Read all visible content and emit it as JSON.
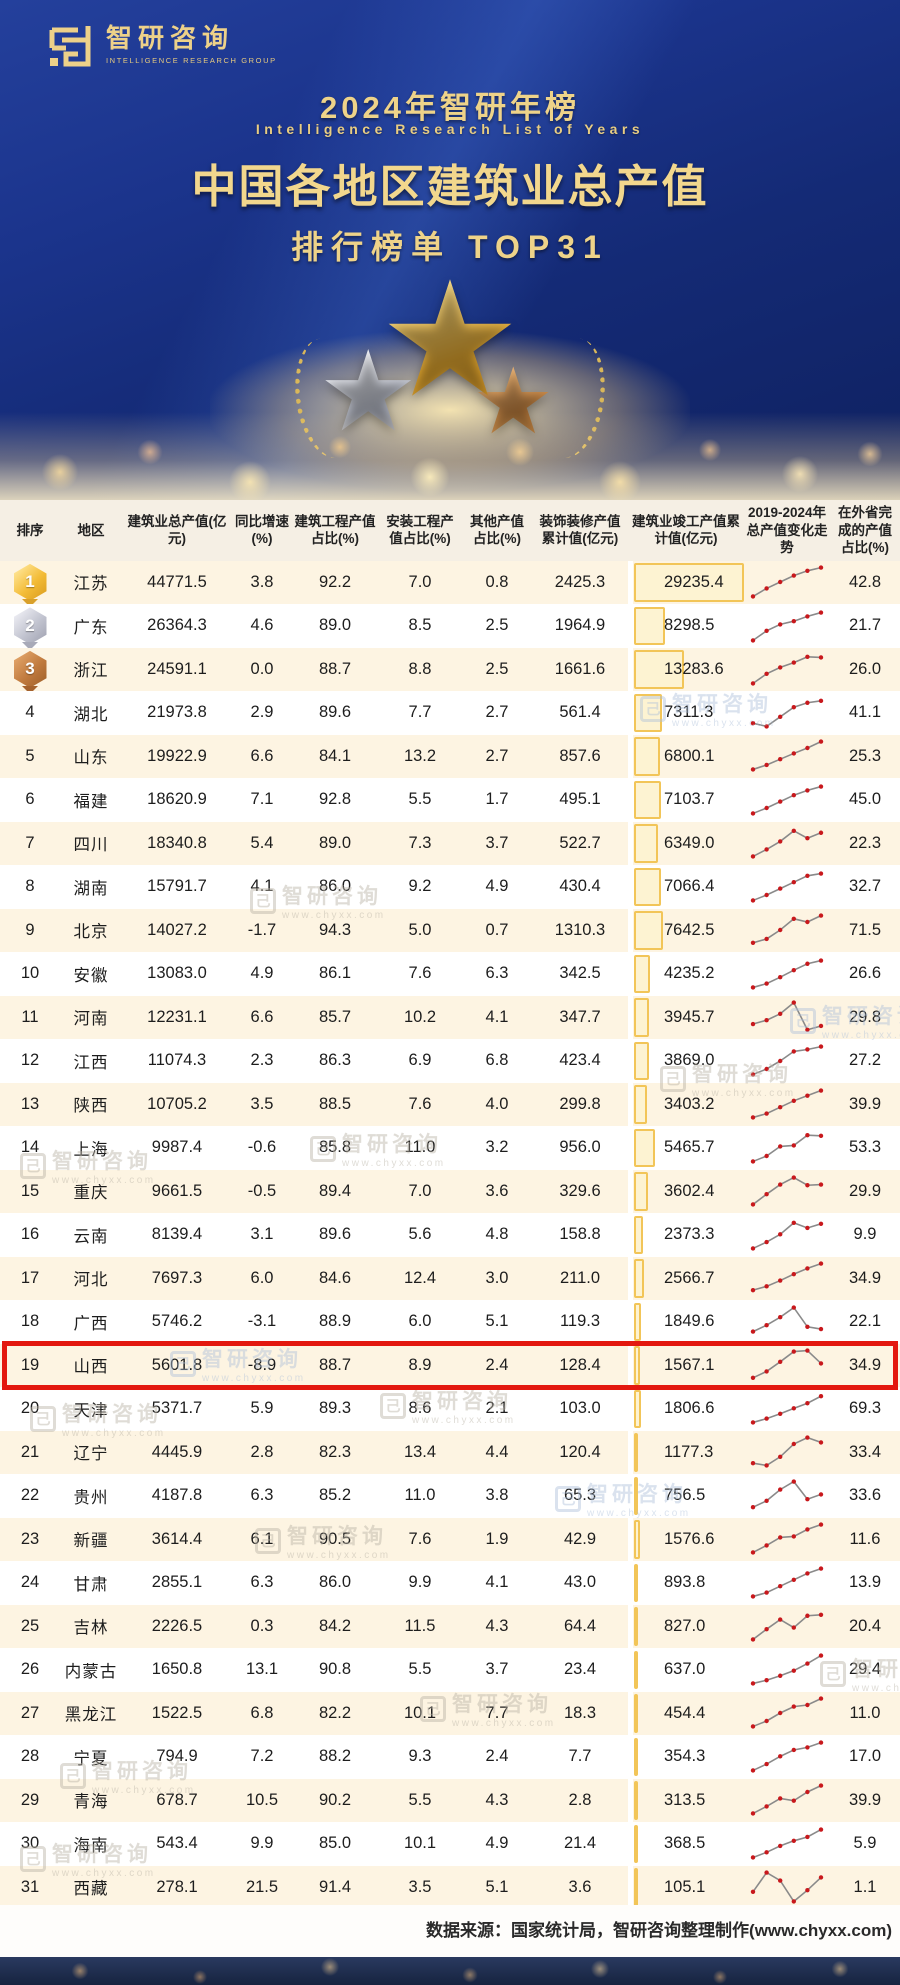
{
  "logo": {
    "cn": "智研咨询",
    "en": "INTELLIGENCE RESEARCH GROUP",
    "mark": "logo-maze-glyph"
  },
  "hero": {
    "year_line": "2024年智研年榜",
    "en_line": "Intelligence Research List of Years",
    "title": "中国各地区建筑业总产值",
    "subtitle": "排行榜单  TOP31",
    "trophy_icons": [
      "gold-star-icon",
      "silver-star-icon",
      "bronze-star-icon",
      "laurel-wreath-icon"
    ]
  },
  "watermark": {
    "cn": "智研咨询",
    "url": "www.chyxx.com",
    "box": "己"
  },
  "footer": {
    "source": "数据来源：国家统计局，智研咨询整理制作(www.chyxx.com)"
  },
  "colors": {
    "hero_blue": "#1b348c",
    "gold_text": "#eed389",
    "row_cream": "#fdf4e2",
    "row_white": "#ffffff",
    "bar_fill": "#fdf3d2",
    "bar_border": "#f2c558",
    "highlight_red": "#e3180f",
    "spark_line": "#8a8a8a",
    "spark_dot": "#c8181c",
    "bottom_band": "#16233f"
  },
  "chart_data": {
    "type": "table",
    "title": "中国各地区建筑业总产值排行榜单 TOP31",
    "columns": [
      "排序",
      "地区",
      "建筑业总产值(亿元)",
      "同比增速(%)",
      "建筑工程产值占比(%)",
      "安装工程产值占比(%)",
      "其他产值占比(%)",
      "装饰装修产值累计值(亿元)",
      "建筑业竣工产值累计值(亿元)",
      "2019-2024年总产值变化走势",
      "在外省完成的产值占比(%)"
    ],
    "trend_years": [
      2019,
      2020,
      2021,
      2022,
      2023,
      2024
    ],
    "bar_max": 29235.4,
    "highlight_rank": 19,
    "rows": [
      {
        "rank": "1",
        "region": "江苏",
        "total": "44771.5",
        "yoy": "3.8",
        "construction_pct": "92.2",
        "install_pct": "7.0",
        "other_pct": "0.8",
        "decoration": "2425.3",
        "completion": "29235.4",
        "trend": [
          5,
          30,
          50,
          70,
          85,
          95
        ],
        "out_province_pct": "42.8"
      },
      {
        "rank": "2",
        "region": "广东",
        "total": "26364.3",
        "yoy": "4.6",
        "construction_pct": "89.0",
        "install_pct": "8.5",
        "other_pct": "2.5",
        "decoration": "1964.9",
        "completion": "8298.5",
        "trend": [
          5,
          35,
          55,
          65,
          80,
          92
        ],
        "out_province_pct": "21.7"
      },
      {
        "rank": "3",
        "region": "浙江",
        "total": "24591.1",
        "yoy": "0.0",
        "construction_pct": "88.7",
        "install_pct": "8.8",
        "other_pct": "2.5",
        "decoration": "1661.6",
        "completion": "13283.6",
        "trend": [
          5,
          35,
          55,
          70,
          88,
          86
        ],
        "out_province_pct": "26.0"
      },
      {
        "rank": "4",
        "region": "湖北",
        "total": "21973.8",
        "yoy": "2.9",
        "construction_pct": "89.6",
        "install_pct": "7.7",
        "other_pct": "2.7",
        "decoration": "561.4",
        "completion": "7311.3",
        "trend": [
          18,
          8,
          38,
          68,
          82,
          88
        ],
        "out_province_pct": "41.1"
      },
      {
        "rank": "5",
        "region": "山东",
        "total": "19922.9",
        "yoy": "6.6",
        "construction_pct": "84.1",
        "install_pct": "13.2",
        "other_pct": "2.7",
        "decoration": "857.6",
        "completion": "6800.1",
        "trend": [
          8,
          22,
          40,
          58,
          75,
          95
        ],
        "out_province_pct": "25.3"
      },
      {
        "rank": "6",
        "region": "福建",
        "total": "18620.9",
        "yoy": "7.1",
        "construction_pct": "92.8",
        "install_pct": "5.5",
        "other_pct": "1.7",
        "decoration": "495.1",
        "completion": "7103.7",
        "trend": [
          8,
          25,
          45,
          65,
          80,
          92
        ],
        "out_province_pct": "45.0"
      },
      {
        "rank": "7",
        "region": "四川",
        "total": "18340.8",
        "yoy": "5.4",
        "construction_pct": "89.0",
        "install_pct": "7.3",
        "other_pct": "3.7",
        "decoration": "522.7",
        "completion": "6349.0",
        "trend": [
          8,
          30,
          55,
          88,
          65,
          82
        ],
        "out_province_pct": "22.3"
      },
      {
        "rank": "8",
        "region": "湖南",
        "total": "15791.7",
        "yoy": "4.1",
        "construction_pct": "86.0",
        "install_pct": "9.2",
        "other_pct": "4.9",
        "decoration": "430.4",
        "completion": "7066.4",
        "trend": [
          8,
          25,
          45,
          65,
          85,
          92
        ],
        "out_province_pct": "32.7"
      },
      {
        "rank": "9",
        "region": "北京",
        "total": "14027.2",
        "yoy": "-1.7",
        "construction_pct": "94.3",
        "install_pct": "5.0",
        "other_pct": "0.7",
        "decoration": "1310.3",
        "completion": "7642.5",
        "trend": [
          10,
          22,
          50,
          85,
          75,
          95
        ],
        "out_province_pct": "71.5"
      },
      {
        "rank": "10",
        "region": "安徽",
        "total": "13083.0",
        "yoy": "4.9",
        "construction_pct": "86.1",
        "install_pct": "7.6",
        "other_pct": "6.3",
        "decoration": "342.5",
        "completion": "4235.2",
        "trend": [
          8,
          20,
          40,
          62,
          82,
          92
        ],
        "out_province_pct": "26.6"
      },
      {
        "rank": "11",
        "region": "河南",
        "total": "12231.1",
        "yoy": "6.6",
        "construction_pct": "85.7",
        "install_pct": "10.2",
        "other_pct": "4.1",
        "decoration": "347.7",
        "completion": "3945.7",
        "trend": [
          28,
          40,
          60,
          95,
          10,
          22
        ],
        "out_province_pct": "29.8"
      },
      {
        "rank": "12",
        "region": "江西",
        "total": "11074.3",
        "yoy": "2.3",
        "construction_pct": "86.3",
        "install_pct": "6.9",
        "other_pct": "6.8",
        "decoration": "423.4",
        "completion": "3869.0",
        "trend": [
          8,
          25,
          50,
          80,
          86,
          95
        ],
        "out_province_pct": "27.2"
      },
      {
        "rank": "13",
        "region": "陕西",
        "total": "10705.2",
        "yoy": "3.5",
        "construction_pct": "88.5",
        "install_pct": "7.6",
        "other_pct": "4.0",
        "decoration": "299.8",
        "completion": "3403.2",
        "trend": [
          8,
          20,
          40,
          60,
          76,
          92
        ],
        "out_province_pct": "39.9"
      },
      {
        "rank": "14",
        "region": "上海",
        "total": "9987.4",
        "yoy": "-0.6",
        "construction_pct": "85.8",
        "install_pct": "11.0",
        "other_pct": "3.2",
        "decoration": "956.0",
        "completion": "5465.7",
        "trend": [
          8,
          25,
          55,
          58,
          90,
          88
        ],
        "out_province_pct": "53.3"
      },
      {
        "rank": "15",
        "region": "重庆",
        "total": "9661.5",
        "yoy": "-0.5",
        "construction_pct": "89.4",
        "install_pct": "7.0",
        "other_pct": "3.6",
        "decoration": "329.6",
        "completion": "3602.4",
        "trend": [
          8,
          40,
          70,
          92,
          68,
          70
        ],
        "out_province_pct": "29.9"
      },
      {
        "rank": "16",
        "region": "云南",
        "total": "8139.4",
        "yoy": "3.1",
        "construction_pct": "89.6",
        "install_pct": "5.6",
        "other_pct": "4.8",
        "decoration": "158.8",
        "completion": "2373.3",
        "trend": [
          8,
          28,
          52,
          88,
          72,
          85
        ],
        "out_province_pct": "9.9"
      },
      {
        "rank": "17",
        "region": "河北",
        "total": "7697.3",
        "yoy": "6.0",
        "construction_pct": "84.6",
        "install_pct": "12.4",
        "other_pct": "3.0",
        "decoration": "211.0",
        "completion": "2566.7",
        "trend": [
          12,
          24,
          42,
          62,
          80,
          95
        ],
        "out_province_pct": "34.9"
      },
      {
        "rank": "18",
        "region": "广西",
        "total": "5746.2",
        "yoy": "-3.1",
        "construction_pct": "88.9",
        "install_pct": "6.0",
        "other_pct": "5.1",
        "decoration": "119.3",
        "completion": "1849.6",
        "trend": [
          20,
          40,
          65,
          95,
          35,
          28
        ],
        "out_province_pct": "22.1"
      },
      {
        "rank": "19",
        "region": "山西",
        "total": "5601.8",
        "yoy": "-8.9",
        "construction_pct": "88.7",
        "install_pct": "8.9",
        "other_pct": "2.4",
        "decoration": "128.4",
        "completion": "1567.1",
        "trend": [
          10,
          30,
          60,
          92,
          95,
          55
        ],
        "out_province_pct": "34.9"
      },
      {
        "rank": "20",
        "region": "天津",
        "total": "5371.7",
        "yoy": "5.9",
        "construction_pct": "89.3",
        "install_pct": "8.6",
        "other_pct": "2.1",
        "decoration": "103.0",
        "completion": "1806.6",
        "trend": [
          8,
          20,
          35,
          52,
          68,
          90
        ],
        "out_province_pct": "69.3"
      },
      {
        "rank": "21",
        "region": "辽宁",
        "total": "4445.9",
        "yoy": "2.8",
        "construction_pct": "82.3",
        "install_pct": "13.4",
        "other_pct": "4.4",
        "decoration": "120.4",
        "completion": "1177.3",
        "trend": [
          15,
          8,
          35,
          75,
          95,
          80
        ],
        "out_province_pct": "33.4"
      },
      {
        "rank": "22",
        "region": "贵州",
        "total": "4187.8",
        "yoy": "6.3",
        "construction_pct": "85.2",
        "install_pct": "11.0",
        "other_pct": "3.8",
        "decoration": "65.3",
        "completion": "756.5",
        "trend": [
          15,
          35,
          70,
          95,
          40,
          55
        ],
        "out_province_pct": "33.6"
      },
      {
        "rank": "23",
        "region": "新疆",
        "total": "3614.4",
        "yoy": "6.1",
        "construction_pct": "90.5",
        "install_pct": "7.6",
        "other_pct": "1.9",
        "decoration": "42.9",
        "completion": "1576.6",
        "trend": [
          8,
          30,
          55,
          58,
          80,
          95
        ],
        "out_province_pct": "11.6"
      },
      {
        "rank": "24",
        "region": "甘肃",
        "total": "2855.1",
        "yoy": "6.3",
        "construction_pct": "86.0",
        "install_pct": "9.9",
        "other_pct": "4.1",
        "decoration": "43.0",
        "completion": "893.8",
        "trend": [
          8,
          20,
          40,
          60,
          80,
          95
        ],
        "out_province_pct": "13.9"
      },
      {
        "rank": "25",
        "region": "吉林",
        "total": "2226.5",
        "yoy": "0.3",
        "construction_pct": "84.2",
        "install_pct": "11.5",
        "other_pct": "4.3",
        "decoration": "64.4",
        "completion": "827.0",
        "trend": [
          8,
          40,
          70,
          45,
          82,
          85
        ],
        "out_province_pct": "20.4"
      },
      {
        "rank": "26",
        "region": "内蒙古",
        "total": "1650.8",
        "yoy": "13.1",
        "construction_pct": "90.8",
        "install_pct": "5.5",
        "other_pct": "3.7",
        "decoration": "23.4",
        "completion": "637.0",
        "trend": [
          8,
          18,
          32,
          48,
          70,
          95
        ],
        "out_province_pct": "29.4"
      },
      {
        "rank": "27",
        "region": "黑龙江",
        "total": "1522.5",
        "yoy": "6.8",
        "construction_pct": "82.2",
        "install_pct": "10.1",
        "other_pct": "7.7",
        "decoration": "18.3",
        "completion": "454.4",
        "trend": [
          8,
          25,
          50,
          70,
          75,
          95
        ],
        "out_province_pct": "11.0"
      },
      {
        "rank": "28",
        "region": "宁夏",
        "total": "794.9",
        "yoy": "7.2",
        "construction_pct": "88.2",
        "install_pct": "9.3",
        "other_pct": "2.4",
        "decoration": "7.7",
        "completion": "354.3",
        "trend": [
          8,
          28,
          52,
          72,
          80,
          95
        ],
        "out_province_pct": "17.0"
      },
      {
        "rank": "29",
        "region": "青海",
        "total": "678.7",
        "yoy": "10.5",
        "construction_pct": "90.2",
        "install_pct": "5.5",
        "other_pct": "4.3",
        "decoration": "2.8",
        "completion": "313.5",
        "trend": [
          8,
          30,
          55,
          48,
          75,
          95
        ],
        "out_province_pct": "39.9"
      },
      {
        "rank": "30",
        "region": "海南",
        "total": "543.4",
        "yoy": "9.9",
        "construction_pct": "85.0",
        "install_pct": "10.1",
        "other_pct": "4.9",
        "decoration": "21.4",
        "completion": "368.5",
        "trend": [
          8,
          24,
          44,
          60,
          72,
          95
        ],
        "out_province_pct": "5.9"
      },
      {
        "rank": "31",
        "region": "西藏",
        "total": "278.1",
        "yoy": "21.5",
        "construction_pct": "91.4",
        "install_pct": "3.5",
        "other_pct": "5.1",
        "decoration": "3.6",
        "completion": "105.1",
        "trend": [
          35,
          95,
          70,
          5,
          40,
          80
        ],
        "out_province_pct": "1.1"
      }
    ]
  }
}
